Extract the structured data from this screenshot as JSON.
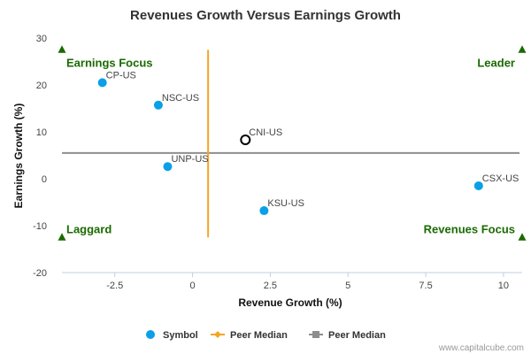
{
  "chart_data": {
    "type": "scatter",
    "title": "Revenues Growth Versus Earnings Growth",
    "xlabel": "Revenue Growth (%)",
    "ylabel": "Earnings Growth (%)",
    "xlim": [
      -4.2,
      10.6
    ],
    "ylim": [
      -20,
      30
    ],
    "xticks": [
      -2.5,
      0,
      2.5,
      5,
      7.5,
      10
    ],
    "xtick_labels": [
      "-2.5",
      "0",
      "2.5",
      "5",
      "7.5",
      "10"
    ],
    "yticks": [
      -20,
      -10,
      0,
      10,
      20,
      30
    ],
    "ytick_labels": [
      "-20",
      "-10",
      "0",
      "10",
      "20",
      "30"
    ],
    "grid": false,
    "points": [
      {
        "label": "CP-US",
        "x": -2.9,
        "y": 20.5,
        "kind": "symbol"
      },
      {
        "label": "NSC-US",
        "x": -1.1,
        "y": 15.7,
        "kind": "symbol"
      },
      {
        "label": "CNI-US",
        "x": 1.7,
        "y": 8.3,
        "kind": "subject"
      },
      {
        "label": "UNP-US",
        "x": -0.8,
        "y": 2.6,
        "kind": "symbol"
      },
      {
        "label": "KSU-US",
        "x": 2.3,
        "y": -6.8,
        "kind": "symbol"
      },
      {
        "label": "CSX-US",
        "x": 9.2,
        "y": -1.5,
        "kind": "symbol"
      }
    ],
    "peer_median_x": 0.5,
    "peer_median_y": 5.5,
    "peer_median_x_range": [
      -12.5,
      27.5
    ],
    "quadrants": [
      {
        "label": "Earnings Focus",
        "position": "top-left",
        "marker_x": -4.2,
        "marker_y": 27.5
      },
      {
        "label": "Leader",
        "position": "top-right",
        "marker_x": 10.6,
        "marker_y": 27.5
      },
      {
        "label": "Laggard",
        "position": "bottom-left",
        "marker_x": -4.2,
        "marker_y": -12.5
      },
      {
        "label": "Revenues Focus",
        "position": "bottom-right",
        "marker_x": 10.6,
        "marker_y": -12.5
      }
    ],
    "legend": {
      "position": "bottom-center",
      "items": [
        {
          "label": "Symbol",
          "kind": "symbol"
        },
        {
          "label": "Peer Median",
          "kind": "median-x"
        },
        {
          "label": "Peer Median",
          "kind": "median-y"
        }
      ]
    },
    "colors": {
      "symbol": "#0aa0e8",
      "subject_stroke": "#000000",
      "median_x": "#f5a623",
      "median_y": "#8e8e8e",
      "quadrant": "#1a6a00",
      "axis": "#c0d0e0"
    }
  },
  "credit": "www.capitalcube.com"
}
